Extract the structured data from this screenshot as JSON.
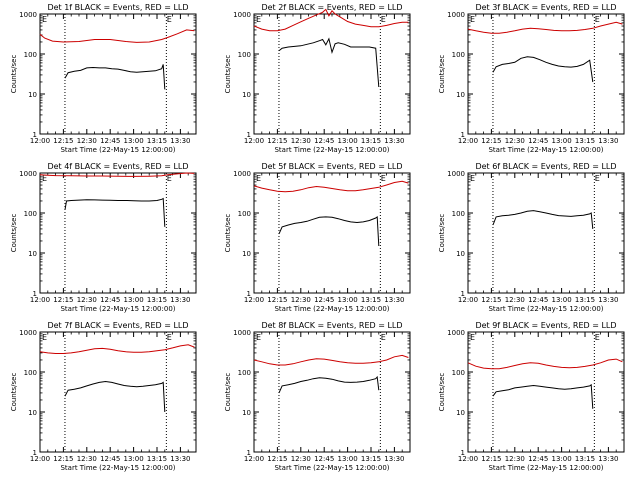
{
  "start_time_label": "Start Time (22-May-15 12:00:00)",
  "ylabel": "Counts/sec",
  "event_marker": "E",
  "x_tick_labels": [
    "12:00",
    "12:15",
    "12:30",
    "12:45",
    "13:00",
    "13:15",
    "13:30"
  ],
  "y_tick_labels": [
    "1",
    "10",
    "100",
    "1000"
  ],
  "colors": {
    "events": "#000000",
    "lld": "#cc0000"
  },
  "chart_data": [
    {
      "type": "line",
      "title": "Det 1f BLACK = Events, RED = LLD",
      "xlabel": "Start Time (22-May-15 12:00:00)",
      "ylabel": "Counts/sec",
      "x_unit": "minutes after 12:00",
      "xlim": [
        0,
        100
      ],
      "ylim": [
        1,
        1000
      ],
      "yscale": "log",
      "x_ticks": [
        0,
        15,
        30,
        45,
        60,
        75,
        90
      ],
      "vlines": [
        16,
        81
      ],
      "event_markers": [
        0,
        80
      ],
      "series": [
        {
          "name": "LLD",
          "color": "red",
          "x": [
            0,
            3,
            8,
            15,
            25,
            35,
            45,
            55,
            62,
            70,
            78,
            82,
            88,
            94,
            99
          ],
          "y": [
            310,
            250,
            210,
            200,
            205,
            230,
            230,
            205,
            195,
            200,
            230,
            260,
            320,
            400,
            380
          ]
        },
        {
          "name": "Events",
          "color": "black",
          "x": [
            16,
            18,
            22,
            26,
            30,
            34,
            38,
            42,
            46,
            50,
            54,
            58,
            62,
            66,
            70,
            74,
            78,
            79,
            80
          ],
          "y": [
            25,
            34,
            37,
            39,
            45,
            46,
            45,
            45,
            43,
            42,
            39,
            36,
            35,
            36,
            37,
            38,
            43,
            55,
            13
          ]
        }
      ]
    },
    {
      "type": "line",
      "title": "Det 2f BLACK = Events, RED = LLD",
      "xlabel": "Start Time (22-May-15 12:00:00)",
      "ylabel": "Counts/sec",
      "x_unit": "minutes after 12:00",
      "xlim": [
        0,
        100
      ],
      "ylim": [
        1,
        1000
      ],
      "yscale": "log",
      "x_ticks": [
        0,
        15,
        30,
        45,
        60,
        75,
        90
      ],
      "vlines": [
        16,
        81
      ],
      "event_markers": [
        0,
        80
      ],
      "series": [
        {
          "name": "LLD",
          "color": "red",
          "x": [
            0,
            5,
            10,
            15,
            20,
            25,
            30,
            35,
            40,
            44,
            46,
            48,
            50,
            52,
            55,
            60,
            65,
            70,
            75,
            80,
            85,
            90,
            95,
            99
          ],
          "y": [
            500,
            420,
            380,
            380,
            420,
            520,
            640,
            780,
            950,
            1100,
            1300,
            900,
            1200,
            1000,
            850,
            650,
            560,
            520,
            480,
            480,
            520,
            580,
            620,
            620
          ]
        },
        {
          "name": "Events",
          "color": "black",
          "x": [
            16,
            18,
            22,
            26,
            30,
            34,
            38,
            42,
            44,
            46,
            48,
            50,
            52,
            54,
            58,
            62,
            66,
            70,
            74,
            78,
            80
          ],
          "y": [
            120,
            140,
            150,
            155,
            160,
            175,
            190,
            215,
            230,
            170,
            240,
            110,
            180,
            190,
            175,
            150,
            150,
            150,
            150,
            140,
            15
          ]
        }
      ]
    },
    {
      "type": "line",
      "title": "Det 3f BLACK = Events, RED = LLD",
      "xlabel": "Start Time (22-May-15 12:00:00)",
      "ylabel": "Counts/sec",
      "x_unit": "minutes after 12:00",
      "xlim": [
        0,
        100
      ],
      "ylim": [
        1,
        1000
      ],
      "yscale": "log",
      "x_ticks": [
        0,
        15,
        30,
        45,
        60,
        75,
        90
      ],
      "vlines": [
        16,
        81
      ],
      "event_markers": [
        0,
        80
      ],
      "series": [
        {
          "name": "LLD",
          "color": "red",
          "x": [
            0,
            5,
            10,
            15,
            20,
            25,
            30,
            35,
            40,
            45,
            50,
            55,
            60,
            65,
            70,
            75,
            80,
            85,
            90,
            95,
            99
          ],
          "y": [
            420,
            380,
            350,
            330,
            330,
            350,
            380,
            420,
            440,
            430,
            410,
            390,
            380,
            380,
            390,
            410,
            440,
            500,
            560,
            620,
            560
          ]
        },
        {
          "name": "Events",
          "color": "black",
          "x": [
            16,
            18,
            22,
            26,
            30,
            34,
            38,
            42,
            46,
            50,
            54,
            58,
            62,
            66,
            70,
            74,
            78,
            80
          ],
          "y": [
            35,
            48,
            55,
            58,
            62,
            78,
            85,
            82,
            72,
            62,
            55,
            50,
            48,
            47,
            49,
            55,
            70,
            20
          ]
        }
      ]
    },
    {
      "type": "line",
      "title": "Det 4f BLACK = Events, RED = LLD",
      "xlabel": "Start Time (22-May-15 12:00:00)",
      "ylabel": "Counts/sec",
      "x_unit": "minutes after 12:00",
      "xlim": [
        0,
        100
      ],
      "ylim": [
        1,
        1000
      ],
      "yscale": "log",
      "x_ticks": [
        0,
        15,
        30,
        45,
        60,
        75,
        90
      ],
      "vlines": [
        16,
        81
      ],
      "event_markers": [
        0,
        80
      ],
      "series": [
        {
          "name": "LLD",
          "color": "red",
          "x": [
            0,
            5,
            10,
            20,
            30,
            40,
            50,
            60,
            70,
            78,
            82,
            88,
            94,
            99
          ],
          "y": [
            900,
            880,
            860,
            850,
            840,
            840,
            830,
            820,
            830,
            850,
            900,
            950,
            1000,
            980
          ]
        },
        {
          "name": "Events",
          "color": "black",
          "x": [
            16,
            17,
            20,
            25,
            30,
            35,
            40,
            45,
            50,
            55,
            60,
            65,
            70,
            75,
            78,
            79,
            80
          ],
          "y": [
            120,
            200,
            205,
            210,
            215,
            212,
            210,
            208,
            205,
            205,
            203,
            200,
            200,
            205,
            220,
            230,
            45
          ]
        }
      ]
    },
    {
      "type": "line",
      "title": "Det 5f BLACK = Events, RED = LLD",
      "xlabel": "Start Time (22-May-15 12:00:00)",
      "ylabel": "Counts/sec",
      "x_unit": "minutes after 12:00",
      "xlim": [
        0,
        100
      ],
      "ylim": [
        1,
        1000
      ],
      "yscale": "log",
      "x_ticks": [
        0,
        15,
        30,
        45,
        60,
        75,
        90
      ],
      "vlines": [
        16,
        81
      ],
      "event_markers": [
        0,
        80
      ],
      "series": [
        {
          "name": "LLD",
          "color": "red",
          "x": [
            0,
            5,
            10,
            15,
            20,
            25,
            30,
            35,
            40,
            45,
            50,
            55,
            60,
            65,
            70,
            75,
            80,
            85,
            90,
            95,
            99
          ],
          "y": [
            480,
            420,
            380,
            350,
            340,
            350,
            380,
            430,
            460,
            440,
            410,
            380,
            360,
            360,
            380,
            410,
            440,
            500,
            580,
            620,
            560
          ]
        },
        {
          "name": "Events",
          "color": "black",
          "x": [
            16,
            18,
            22,
            26,
            30,
            34,
            38,
            42,
            46,
            50,
            54,
            58,
            62,
            66,
            70,
            74,
            78,
            79,
            80
          ],
          "y": [
            30,
            45,
            50,
            55,
            58,
            62,
            70,
            78,
            80,
            78,
            72,
            65,
            60,
            58,
            60,
            65,
            75,
            80,
            15
          ]
        }
      ]
    },
    {
      "type": "line",
      "title": "Det 6f BLACK = Events, RED = LLD",
      "xlabel": "Start Time (22-May-15 12:00:00)",
      "ylabel": "Counts/sec",
      "x_unit": "minutes after 12:00",
      "xlim": [
        0,
        100
      ],
      "ylim": [
        1,
        1000
      ],
      "yscale": "log",
      "x_ticks": [
        0,
        15,
        30,
        45,
        60,
        75,
        90
      ],
      "vlines": [
        16,
        81
      ],
      "event_markers": [
        0,
        80
      ],
      "series": [
        {
          "name": "Events",
          "color": "black",
          "x": [
            16,
            18,
            22,
            26,
            30,
            34,
            38,
            42,
            46,
            50,
            54,
            58,
            62,
            66,
            70,
            74,
            78,
            79,
            80
          ],
          "y": [
            50,
            80,
            85,
            88,
            92,
            100,
            110,
            115,
            108,
            100,
            92,
            86,
            84,
            82,
            85,
            88,
            95,
            100,
            40
          ]
        }
      ]
    },
    {
      "type": "line",
      "title": "Det 7f BLACK = Events, RED = LLD",
      "xlabel": "Start Time (22-May-15 12:00:00)",
      "ylabel": "Counts/sec",
      "x_unit": "minutes after 12:00",
      "xlim": [
        0,
        100
      ],
      "ylim": [
        1,
        1000
      ],
      "yscale": "log",
      "x_ticks": [
        0,
        15,
        30,
        45,
        60,
        75,
        90
      ],
      "vlines": [
        16,
        81
      ],
      "event_markers": [
        0,
        80
      ],
      "series": [
        {
          "name": "LLD",
          "color": "red",
          "x": [
            0,
            5,
            10,
            15,
            20,
            25,
            30,
            35,
            40,
            45,
            50,
            55,
            60,
            65,
            70,
            75,
            80,
            85,
            90,
            95,
            99
          ],
          "y": [
            320,
            300,
            290,
            290,
            300,
            320,
            350,
            380,
            390,
            370,
            340,
            320,
            310,
            310,
            320,
            340,
            360,
            400,
            450,
            480,
            420
          ]
        },
        {
          "name": "Events",
          "color": "black",
          "x": [
            16,
            18,
            22,
            26,
            30,
            34,
            38,
            42,
            46,
            50,
            54,
            58,
            62,
            66,
            70,
            74,
            78,
            79,
            80
          ],
          "y": [
            25,
            35,
            37,
            40,
            45,
            50,
            55,
            58,
            55,
            50,
            46,
            44,
            43,
            44,
            46,
            48,
            52,
            55,
            10
          ]
        }
      ]
    },
    {
      "type": "line",
      "title": "Det 8f BLACK = Events, RED = LLD",
      "xlabel": "Start Time (22-May-15 12:00:00)",
      "ylabel": "Counts/sec",
      "x_unit": "minutes after 12:00",
      "xlim": [
        0,
        100
      ],
      "ylim": [
        1,
        1000
      ],
      "yscale": "log",
      "x_ticks": [
        0,
        15,
        30,
        45,
        60,
        75,
        90
      ],
      "vlines": [
        16,
        81
      ],
      "event_markers": [
        0,
        80
      ],
      "series": [
        {
          "name": "LLD",
          "color": "red",
          "x": [
            0,
            5,
            10,
            15,
            20,
            25,
            30,
            35,
            40,
            45,
            50,
            55,
            60,
            65,
            70,
            75,
            80,
            85,
            90,
            95,
            99
          ],
          "y": [
            200,
            180,
            160,
            150,
            150,
            160,
            180,
            200,
            215,
            210,
            195,
            180,
            170,
            165,
            165,
            170,
            180,
            200,
            240,
            260,
            230
          ]
        },
        {
          "name": "Events",
          "color": "black",
          "x": [
            16,
            18,
            22,
            26,
            30,
            34,
            38,
            42,
            46,
            50,
            54,
            58,
            62,
            66,
            70,
            74,
            78,
            79,
            80
          ],
          "y": [
            30,
            45,
            48,
            52,
            58,
            62,
            68,
            72,
            70,
            66,
            60,
            56,
            55,
            56,
            58,
            62,
            68,
            75,
            35
          ]
        }
      ]
    },
    {
      "type": "line",
      "title": "Det 9f BLACK = Events, RED = LLD",
      "xlabel": "Start Time (22-May-15 12:00:00)",
      "ylabel": "Counts/sec",
      "x_unit": "minutes after 12:00",
      "xlim": [
        0,
        100
      ],
      "ylim": [
        1,
        1000
      ],
      "yscale": "log",
      "x_ticks": [
        0,
        15,
        30,
        45,
        60,
        75,
        90
      ],
      "vlines": [
        16,
        81
      ],
      "event_markers": [
        0,
        80
      ],
      "series": [
        {
          "name": "LLD",
          "color": "red",
          "x": [
            0,
            5,
            10,
            15,
            20,
            25,
            30,
            35,
            40,
            45,
            50,
            55,
            60,
            65,
            70,
            75,
            80,
            85,
            90,
            95,
            99
          ],
          "y": [
            170,
            140,
            125,
            120,
            120,
            130,
            145,
            160,
            170,
            165,
            150,
            138,
            130,
            128,
            130,
            138,
            150,
            170,
            200,
            210,
            180
          ]
        },
        {
          "name": "Events",
          "color": "black",
          "x": [
            16,
            18,
            22,
            26,
            30,
            34,
            38,
            42,
            46,
            50,
            54,
            58,
            62,
            66,
            70,
            74,
            78,
            79,
            80
          ],
          "y": [
            25,
            32,
            34,
            36,
            40,
            42,
            44,
            46,
            44,
            42,
            40,
            38,
            37,
            38,
            40,
            42,
            45,
            48,
            12
          ]
        }
      ]
    }
  ]
}
